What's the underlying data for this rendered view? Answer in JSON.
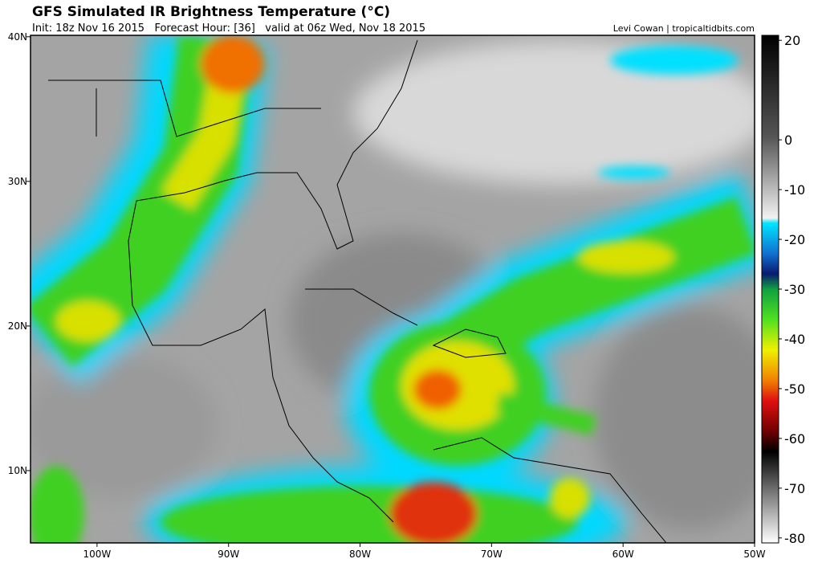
{
  "map": {
    "title": "GFS Simulated IR Brightness Temperature (°C)",
    "subtitle": "Init: 18z Nov 16 2015   Forecast Hour: [36]   valid at 06z Wed, Nov 18 2015",
    "credit": "Levi Cowan | tropicaltidbits.com",
    "xlim": [
      -105.06,
      -50
    ],
    "ylim": [
      5,
      40.1
    ],
    "xticks": [
      {
        "value": -100,
        "label": "100W"
      },
      {
        "value": -90,
        "label": "90W"
      },
      {
        "value": -80,
        "label": "80W"
      },
      {
        "value": -70,
        "label": "70W"
      },
      {
        "value": -60,
        "label": "60W"
      },
      {
        "value": -50,
        "label": "50W"
      }
    ],
    "yticks": [
      {
        "value": 40,
        "label": "40N"
      },
      {
        "value": 30,
        "label": "30N"
      },
      {
        "value": 20,
        "label": "20N"
      },
      {
        "value": 10,
        "label": "10N"
      }
    ],
    "colorbar": {
      "lim": [
        -81,
        21
      ],
      "ticks": [
        20,
        0,
        -10,
        -20,
        -30,
        -40,
        -50,
        -60,
        -70,
        -80
      ]
    }
  }
}
